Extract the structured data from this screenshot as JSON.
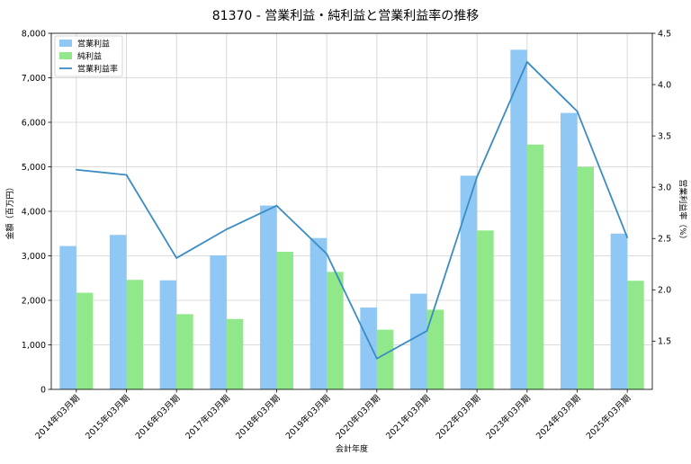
{
  "chart_data": {
    "type": "bar",
    "title": "81370 - 営業利益・純利益と営業利益率の推移",
    "xlabel": "会計年度",
    "ylabel": "金額（百万円）",
    "y2label": "営業利益率（%）",
    "categories": [
      "2014年03月期",
      "2015年03月期",
      "2016年03月期",
      "2017年03月期",
      "2018年03月期",
      "2019年03月期",
      "2020年03月期",
      "2021年03月期",
      "2022年03月期",
      "2023年03月期",
      "2024年03月期",
      "2025年03月期"
    ],
    "series": [
      {
        "name": "営業利益",
        "kind": "bar",
        "axis": "left",
        "color": "#90c8f5",
        "values": [
          3220,
          3470,
          2450,
          3010,
          4130,
          3400,
          1840,
          2150,
          4800,
          7630,
          6210,
          3500
        ]
      },
      {
        "name": "純利益",
        "kind": "bar",
        "axis": "left",
        "color": "#90e88a",
        "values": [
          2170,
          2460,
          1690,
          1580,
          3090,
          2640,
          1340,
          1790,
          3570,
          5500,
          5000,
          2440
        ]
      },
      {
        "name": "営業利益率",
        "kind": "line",
        "axis": "right",
        "color": "#3a8cc4",
        "values": [
          3.17,
          3.12,
          2.31,
          2.59,
          2.82,
          2.35,
          1.33,
          1.6,
          3.1,
          4.22,
          3.74,
          2.51
        ]
      }
    ],
    "ylim": [
      0,
      8000
    ],
    "yticks": [
      "0",
      "1,000",
      "2,000",
      "3,000",
      "4,000",
      "5,000",
      "6,000",
      "7,000",
      "8,000"
    ],
    "y2lim": [
      1.03,
      4.5
    ],
    "y2ticks": [
      "1.5",
      "2.0",
      "2.5",
      "3.0",
      "3.5",
      "4.0",
      "4.5"
    ],
    "grid": true,
    "legend_position": "top-left"
  }
}
